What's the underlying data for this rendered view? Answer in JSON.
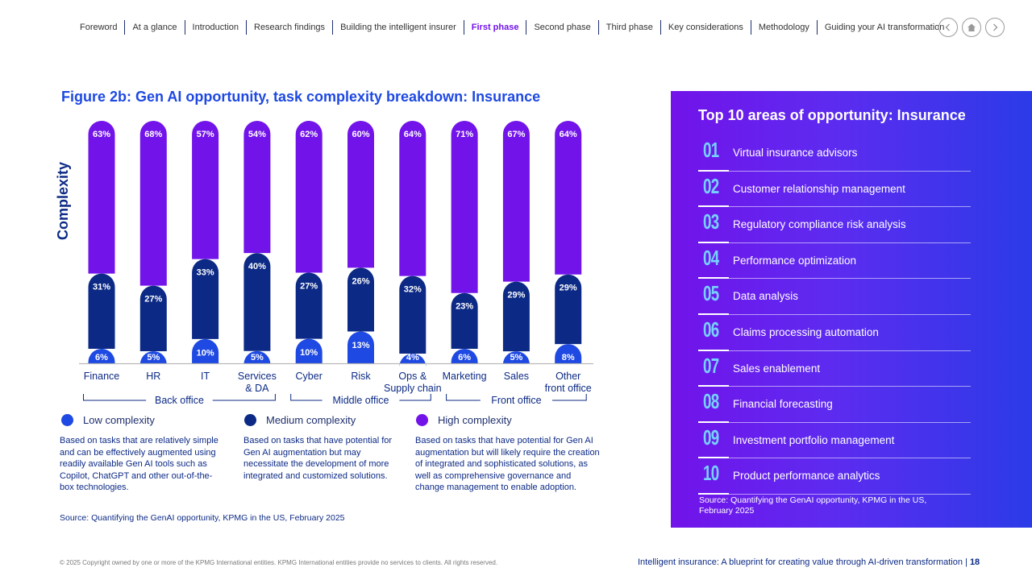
{
  "nav": {
    "items": [
      "Foreword",
      "At a glance",
      "Introduction",
      "Research findings",
      "Building the intelligent insurer",
      "First phase",
      "Second phase",
      "Third phase",
      "Key considerations",
      "Methodology",
      "Guiding your AI transformation"
    ],
    "active_index": 5,
    "buttons": [
      "chevron-left-icon",
      "home-icon",
      "chevron-right-icon"
    ]
  },
  "colors": {
    "low": "#1e49e2",
    "medium": "#0c2a85",
    "high": "#7213ea",
    "panel_accent": "#76d2ff"
  },
  "chart_data": {
    "type": "bar",
    "stacked": true,
    "title": "Figure 2b: Gen AI opportunity, task complexity breakdown: Insurance",
    "ylabel": "Complexity",
    "categories": [
      "Finance",
      "HR",
      "IT",
      "Services & DA",
      "Cyber",
      "Risk",
      "Ops & Supply chain",
      "Marketing",
      "Sales",
      "Other front office"
    ],
    "series": [
      {
        "name": "Low complexity",
        "values": [
          6,
          5,
          10,
          5,
          10,
          13,
          4,
          6,
          5,
          8
        ]
      },
      {
        "name": "Medium complexity",
        "values": [
          31,
          27,
          33,
          40,
          27,
          26,
          32,
          23,
          29,
          29
        ]
      },
      {
        "name": "High complexity",
        "values": [
          63,
          68,
          57,
          54,
          62,
          60,
          64,
          71,
          67,
          64
        ]
      }
    ],
    "value_suffix": "%",
    "groups": [
      {
        "label": "Back office",
        "from": 0,
        "to": 3
      },
      {
        "label": "Middle office",
        "from": 4,
        "to": 6
      },
      {
        "label": "Front office",
        "from": 7,
        "to": 9
      }
    ],
    "ylim": [
      0,
      100
    ]
  },
  "legend": [
    {
      "label": "Low complexity",
      "desc": "Based on tasks that are relatively simple and can be effectively augmented using readily available Gen AI tools such as Copilot, ChatGPT and other out-of-the-box technologies."
    },
    {
      "label": "Medium complexity",
      "desc": "Based on tasks that have potential for Gen AI augmentation but may necessitate the development of more integrated and customized solutions."
    },
    {
      "label": "High complexity",
      "desc": "Based on tasks that have potential for Gen AI augmentation but will likely require the creation of integrated and sophisticated solutions, as well as comprehensive governance and change management to enable adoption."
    }
  ],
  "source_left": "Source: Quantifying the GenAI opportunity, KPMG in the US, February 2025",
  "panel": {
    "title": "Top 10 areas of opportunity: Insurance",
    "items": [
      {
        "num": "01",
        "label": "Virtual insurance advisors"
      },
      {
        "num": "02",
        "label": "Customer relationship management"
      },
      {
        "num": "03",
        "label": "Regulatory compliance risk analysis"
      },
      {
        "num": "04",
        "label": "Performance optimization"
      },
      {
        "num": "05",
        "label": "Data analysis"
      },
      {
        "num": "06",
        "label": "Claims processing automation"
      },
      {
        "num": "07",
        "label": "Sales enablement"
      },
      {
        "num": "08",
        "label": "Financial forecasting"
      },
      {
        "num": "09",
        "label": "Investment portfolio management"
      },
      {
        "num": "10",
        "label": "Product performance analytics"
      }
    ],
    "source": "Source: Quantifying the GenAI opportunity, KPMG in the US, February 2025"
  },
  "footer": {
    "copyright": "© 2025 Copyright owned by one or more of the KPMG International entities. KPMG International entities provide no services to clients. All rights reserved.",
    "doc_title": "Intelligent insurance: A blueprint for creating value through AI-driven transformation | ",
    "page": "18"
  }
}
